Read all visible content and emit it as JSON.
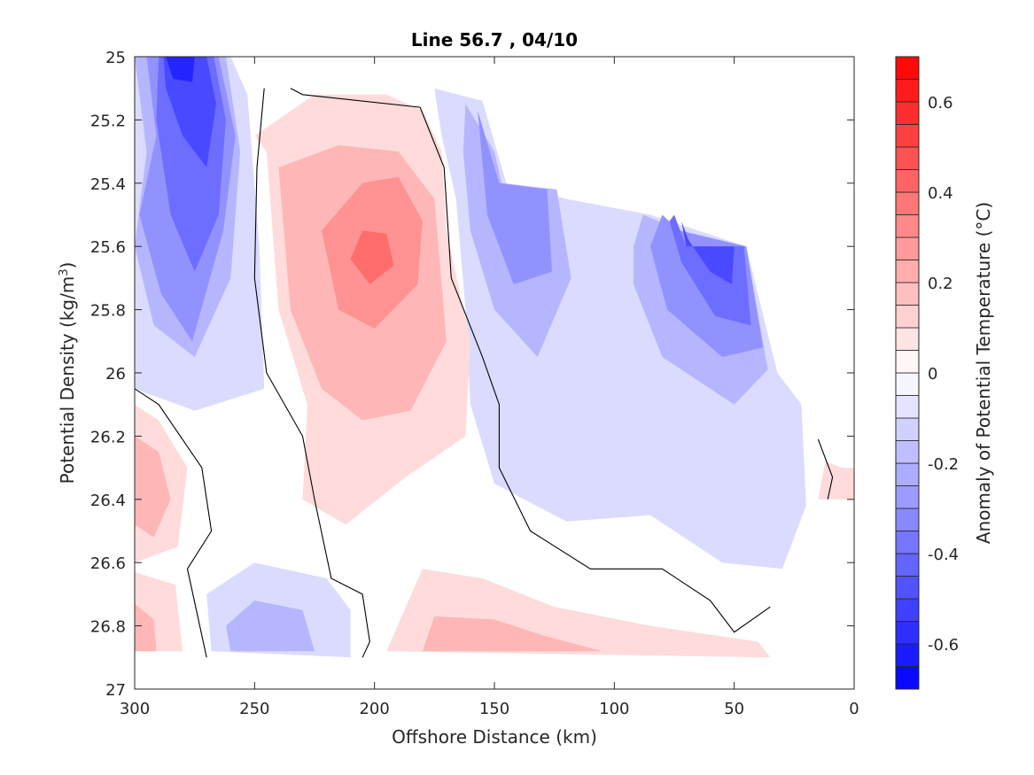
{
  "chart_data": {
    "type": "contour",
    "title": "Line 56.7 , 04/10",
    "xlabel": "Offshore Distance (km)",
    "ylabel": "Potential Density (kg/m",
    "ylabel_superscript": "3",
    "ylabel_suffix": ")",
    "colorbar_label": "Anomaly of Potential Temperature (°C)",
    "x_reversed": true,
    "y_reversed": true,
    "xlim": [
      0,
      300
    ],
    "ylim": [
      25,
      27
    ],
    "x_ticks": [
      300,
      250,
      200,
      150,
      100,
      50,
      0
    ],
    "x_tick_labels": [
      "300",
      "250",
      "200",
      "150",
      "100",
      "50",
      "0"
    ],
    "y_ticks": [
      25,
      25.2,
      25.4,
      25.6,
      25.8,
      26,
      26.2,
      26.4,
      26.6,
      26.8,
      27
    ],
    "y_tick_labels": [
      "25",
      "25.2",
      "25.4",
      "25.6",
      "25.8",
      "26",
      "26.2",
      "26.4",
      "26.6",
      "26.8",
      "27"
    ],
    "colorbar": {
      "range": [
        -0.7,
        0.7
      ],
      "step": 0.05,
      "ticks": [
        0.6,
        0.4,
        0.2,
        0,
        -0.2,
        -0.4,
        -0.6
      ],
      "tick_labels": [
        "0.6",
        "0.4",
        "0.2",
        "0",
        "-0.2",
        "-0.4",
        "-0.6"
      ],
      "colors": {
        "negative": "#0000ff",
        "zero": "#ffffff",
        "positive": "#ff0000"
      }
    },
    "data_boundary": [
      [
        300,
        25
      ],
      [
        260,
        25
      ],
      [
        253,
        25.09
      ],
      [
        190,
        25.09
      ],
      [
        181,
        25.14
      ],
      [
        158,
        25.14
      ],
      [
        154,
        25.3
      ],
      [
        150,
        25.3
      ],
      [
        147,
        25.4
      ],
      [
        125,
        25.4
      ],
      [
        122,
        25.5
      ],
      [
        75,
        25.5
      ],
      [
        70,
        25.6
      ],
      [
        45,
        25.6
      ],
      [
        35,
        25.99
      ],
      [
        22,
        26.11
      ],
      [
        0,
        26.3
      ],
      [
        0,
        26.4
      ],
      [
        20,
        26.4
      ],
      [
        35,
        26.9
      ],
      [
        300,
        26.9
      ]
    ],
    "anomaly_regions": [
      {
        "level": -0.1,
        "points": [
          [
            300,
            25
          ],
          [
            260,
            25
          ],
          [
            253,
            25.12
          ],
          [
            248,
            25.6
          ],
          [
            246,
            26.05
          ],
          [
            275,
            26.12
          ],
          [
            300,
            26.05
          ]
        ]
      },
      {
        "level": -0.2,
        "points": [
          [
            300,
            25
          ],
          [
            262,
            25
          ],
          [
            256,
            25.3
          ],
          [
            260,
            25.7
          ],
          [
            275,
            25.95
          ],
          [
            292,
            25.85
          ],
          [
            300,
            25.6
          ],
          [
            295,
            25.3
          ]
        ]
      },
      {
        "level": -0.3,
        "points": [
          [
            295,
            25
          ],
          [
            265,
            25
          ],
          [
            258,
            25.25
          ],
          [
            263,
            25.55
          ],
          [
            276,
            25.9
          ],
          [
            289,
            25.75
          ],
          [
            298,
            25.5
          ],
          [
            291,
            25.25
          ]
        ]
      },
      {
        "level": -0.4,
        "points": [
          [
            290,
            25
          ],
          [
            267,
            25
          ],
          [
            262,
            25.2
          ],
          [
            265,
            25.5
          ],
          [
            275,
            25.68
          ],
          [
            285,
            25.5
          ],
          [
            291,
            25.2
          ]
        ]
      },
      {
        "level": -0.5,
        "points": [
          [
            288,
            25
          ],
          [
            270,
            25
          ],
          [
            266,
            25.15
          ],
          [
            270,
            25.35
          ],
          [
            280,
            25.25
          ],
          [
            287,
            25.1
          ]
        ]
      },
      {
        "level": -0.6,
        "points": [
          [
            287,
            25
          ],
          [
            275,
            25
          ],
          [
            276,
            25.08
          ],
          [
            284,
            25.07
          ]
        ]
      },
      {
        "level": -0.1,
        "points": [
          [
            175,
            25.1
          ],
          [
            155,
            25.14
          ],
          [
            145,
            25.4
          ],
          [
            120,
            25.45
          ],
          [
            85,
            25.5
          ],
          [
            45,
            25.6
          ],
          [
            32,
            26.0
          ],
          [
            22,
            26.1
          ],
          [
            20,
            26.42
          ],
          [
            30,
            26.62
          ],
          [
            55,
            26.6
          ],
          [
            85,
            26.45
          ],
          [
            120,
            26.47
          ],
          [
            150,
            26.35
          ],
          [
            160,
            26.1
          ],
          [
            162,
            25.8
          ],
          [
            166,
            25.45
          ],
          [
            172,
            25.25
          ]
        ]
      },
      {
        "level": -0.2,
        "points": [
          [
            162,
            25.15
          ],
          [
            150,
            25.3
          ],
          [
            147,
            25.4
          ],
          [
            124,
            25.42
          ],
          [
            118,
            25.7
          ],
          [
            132,
            25.95
          ],
          [
            150,
            25.8
          ],
          [
            160,
            25.55
          ],
          [
            163,
            25.3
          ]
        ]
      },
      {
        "level": -0.3,
        "points": [
          [
            157,
            25.17
          ],
          [
            148,
            25.4
          ],
          [
            128,
            25.42
          ],
          [
            126,
            25.68
          ],
          [
            142,
            25.72
          ],
          [
            153,
            25.5
          ]
        ]
      },
      {
        "level": -0.2,
        "points": [
          [
            88,
            25.5
          ],
          [
            72,
            25.55
          ],
          [
            45,
            25.6
          ],
          [
            36,
            25.99
          ],
          [
            50,
            26.1
          ],
          [
            80,
            25.95
          ],
          [
            92,
            25.72
          ],
          [
            92,
            25.6
          ]
        ]
      },
      {
        "level": -0.3,
        "points": [
          [
            80,
            25.5
          ],
          [
            73,
            25.55
          ],
          [
            45,
            25.6
          ],
          [
            38,
            25.92
          ],
          [
            55,
            25.95
          ],
          [
            78,
            25.8
          ],
          [
            85,
            25.6
          ]
        ]
      },
      {
        "level": -0.4,
        "points": [
          [
            75,
            25.5
          ],
          [
            70,
            25.6
          ],
          [
            46,
            25.6
          ],
          [
            43,
            25.85
          ],
          [
            58,
            25.82
          ],
          [
            72,
            25.65
          ],
          [
            77,
            25.52
          ]
        ]
      },
      {
        "level": -0.5,
        "points": [
          [
            72,
            25.52
          ],
          [
            70,
            25.6
          ],
          [
            50,
            25.6
          ],
          [
            51,
            25.72
          ],
          [
            60,
            25.68
          ],
          [
            69,
            25.58
          ]
        ]
      },
      {
        "level": -0.1,
        "points": [
          [
            268,
            26.88
          ],
          [
            270,
            26.7
          ],
          [
            250,
            26.6
          ],
          [
            220,
            26.65
          ],
          [
            210,
            26.75
          ],
          [
            210,
            26.9
          ]
        ]
      },
      {
        "level": -0.2,
        "points": [
          [
            262,
            26.8
          ],
          [
            250,
            26.72
          ],
          [
            230,
            26.75
          ],
          [
            225,
            26.88
          ],
          [
            260,
            26.88
          ]
        ]
      },
      {
        "level": 0.1,
        "points": [
          [
            250,
            25.25
          ],
          [
            245,
            25.3
          ],
          [
            240,
            25.8
          ],
          [
            228,
            26.1
          ],
          [
            230,
            26.4
          ],
          [
            212,
            26.48
          ],
          [
            187,
            26.33
          ],
          [
            162,
            26.2
          ],
          [
            160,
            25.9
          ],
          [
            170,
            25.55
          ],
          [
            172,
            25.3
          ],
          [
            180,
            25.17
          ],
          [
            195,
            25.12
          ],
          [
            225,
            25.12
          ]
        ]
      },
      {
        "level": 0.2,
        "points": [
          [
            240,
            25.35
          ],
          [
            235,
            25.8
          ],
          [
            222,
            26.05
          ],
          [
            205,
            26.15
          ],
          [
            185,
            26.12
          ],
          [
            170,
            25.9
          ],
          [
            175,
            25.45
          ],
          [
            190,
            25.3
          ],
          [
            215,
            25.28
          ]
        ]
      },
      {
        "level": 0.3,
        "points": [
          [
            222,
            25.55
          ],
          [
            215,
            25.8
          ],
          [
            200,
            25.86
          ],
          [
            182,
            25.72
          ],
          [
            180,
            25.52
          ],
          [
            190,
            25.38
          ],
          [
            205,
            25.4
          ]
        ]
      },
      {
        "level": 0.4,
        "points": [
          [
            210,
            25.64
          ],
          [
            202,
            25.72
          ],
          [
            192,
            25.66
          ],
          [
            195,
            25.56
          ],
          [
            205,
            25.55
          ]
        ]
      },
      {
        "level": 0.1,
        "points": [
          [
            300,
            26.1
          ],
          [
            290,
            26.15
          ],
          [
            278,
            26.3
          ],
          [
            282,
            26.55
          ],
          [
            293,
            26.58
          ],
          [
            300,
            26.6
          ]
        ]
      },
      {
        "level": 0.2,
        "points": [
          [
            300,
            26.2
          ],
          [
            290,
            26.25
          ],
          [
            285,
            26.4
          ],
          [
            292,
            26.52
          ],
          [
            300,
            26.48
          ]
        ]
      },
      {
        "level": 0.1,
        "points": [
          [
            300,
            26.63
          ],
          [
            283,
            26.67
          ],
          [
            280,
            26.88
          ],
          [
            300,
            26.88
          ]
        ]
      },
      {
        "level": 0.2,
        "points": [
          [
            300,
            26.73
          ],
          [
            292,
            26.78
          ],
          [
            291,
            26.88
          ],
          [
            300,
            26.88
          ]
        ]
      },
      {
        "level": 0.1,
        "points": [
          [
            195,
            26.88
          ],
          [
            180,
            26.62
          ],
          [
            155,
            26.65
          ],
          [
            125,
            26.74
          ],
          [
            85,
            26.8
          ],
          [
            40,
            26.85
          ],
          [
            35,
            26.9
          ]
        ]
      },
      {
        "level": 0.2,
        "points": [
          [
            180,
            26.88
          ],
          [
            175,
            26.77
          ],
          [
            150,
            26.78
          ],
          [
            130,
            26.83
          ],
          [
            105,
            26.88
          ]
        ]
      },
      {
        "level": 0.1,
        "points": [
          [
            12,
            26.28
          ],
          [
            5,
            26.3
          ],
          [
            0,
            26.3
          ],
          [
            0,
            26.4
          ],
          [
            15,
            26.4
          ]
        ]
      }
    ],
    "zero_contours": [
      [
        [
          246,
          25.1
        ],
        [
          249,
          25.35
        ],
        [
          250,
          25.7
        ],
        [
          245,
          26.0
        ],
        [
          230,
          26.2
        ],
        [
          225,
          26.4
        ],
        [
          218,
          26.65
        ],
        [
          205,
          26.7
        ],
        [
          202,
          26.85
        ],
        [
          205,
          26.9
        ]
      ],
      [
        [
          235,
          25.1
        ],
        [
          230,
          25.12
        ],
        [
          181,
          25.16
        ],
        [
          171,
          25.35
        ],
        [
          168,
          25.7
        ],
        [
          155,
          25.95
        ],
        [
          148,
          26.1
        ],
        [
          148,
          26.3
        ],
        [
          135,
          26.5
        ],
        [
          110,
          26.62
        ],
        [
          80,
          26.62
        ],
        [
          60,
          26.72
        ],
        [
          50,
          26.82
        ],
        [
          35,
          26.74
        ]
      ],
      [
        [
          300,
          26.05
        ],
        [
          290,
          26.1
        ],
        [
          272,
          26.3
        ],
        [
          268,
          26.5
        ],
        [
          278,
          26.62
        ],
        [
          270,
          26.9
        ]
      ],
      [
        [
          15,
          26.21
        ],
        [
          9,
          26.33
        ],
        [
          11,
          26.4
        ]
      ]
    ]
  }
}
